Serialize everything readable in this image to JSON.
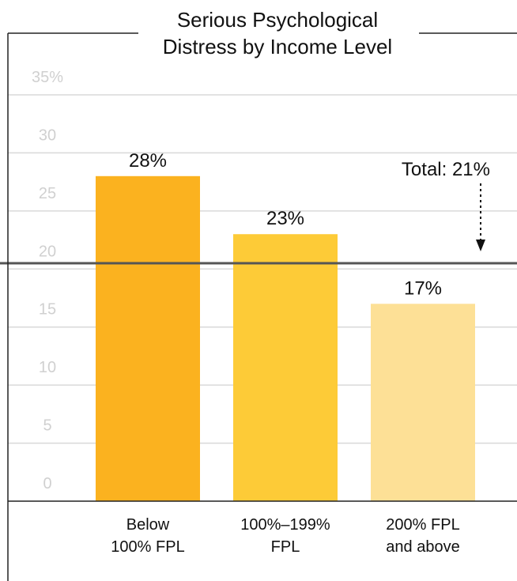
{
  "chart_data": {
    "type": "bar",
    "title": "Serious Psychological Distress by Income Level",
    "title_lines": [
      "Serious Psychological",
      "Distress by Income Level"
    ],
    "categories": [
      "Below 100% FPL",
      "100%–199% FPL",
      "200% FPL and above"
    ],
    "category_lines": [
      [
        "Below",
        "100% FPL"
      ],
      [
        "100%–199%",
        "FPL"
      ],
      [
        "200% FPL",
        "and above"
      ]
    ],
    "values": [
      28,
      23,
      17
    ],
    "value_labels": [
      "28%",
      "23%",
      "17%"
    ],
    "bar_colors": [
      "#fbb21f",
      "#fdcb37",
      "#fde096"
    ],
    "y_ticks": [
      0,
      5,
      10,
      15,
      20,
      25,
      30,
      35
    ],
    "y_tick_labels": [
      "0",
      "5",
      "10",
      "15",
      "20",
      "25",
      "30",
      "35%"
    ],
    "ylim": [
      0,
      35
    ],
    "grid": true,
    "reference_line": {
      "value": 20.5,
      "label": "Total: 21%",
      "color": "#555555"
    },
    "xlabel": "",
    "ylabel": ""
  }
}
